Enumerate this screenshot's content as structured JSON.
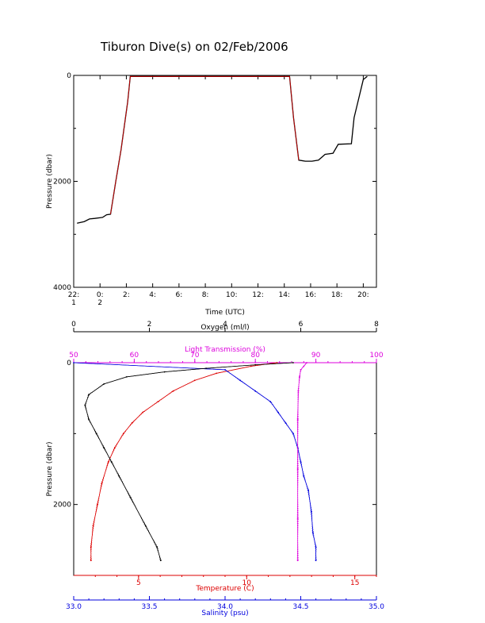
{
  "title": "Tiburon Dive(s) on 02/Feb/2006",
  "colors": {
    "black": "#000000",
    "temperature": "#dd0000",
    "salinity": "#0000dd",
    "transmission": "#dd00dd",
    "oxygen": "#000000"
  },
  "chart_data": [
    {
      "type": "line",
      "name": "pressure-vs-time",
      "xlabel": "Time (UTC)",
      "ylabel": "Pressure (dbar)",
      "x_unit": "hours since 22:00 UTC 01/Feb/2006",
      "xlim": [
        0,
        23
      ],
      "ylim": [
        4000,
        0
      ],
      "y_ticks": [
        0,
        2000,
        4000
      ],
      "y_tick_labels": [
        "0",
        "2000",
        "4000"
      ],
      "x_tick_positions": [
        0,
        2,
        4,
        6,
        8,
        10,
        12,
        14,
        16,
        18,
        20,
        22
      ],
      "x_tick_labels": [
        "22:\n1",
        "0:\n2",
        "2:",
        "4:",
        "6:",
        "8:",
        "10:",
        "12:",
        "14:",
        "16:",
        "18:",
        "20:"
      ],
      "series": [
        {
          "color": "#000000",
          "x": [
            0.25,
            0.8,
            1.2,
            1.6,
            2.2,
            2.5,
            2.8,
            3.2,
            3.6,
            4.1,
            4.3,
            16.4,
            16.7,
            17.1,
            17.6,
            18.1,
            18.6,
            19.1,
            19.7,
            20.1,
            21.1,
            21.3,
            22.0,
            22.3
          ],
          "y": [
            2790,
            2760,
            2710,
            2700,
            2680,
            2630,
            2620,
            2000,
            1400,
            500,
            20,
            20,
            800,
            1600,
            1620,
            1620,
            1600,
            1490,
            1470,
            1300,
            1290,
            800,
            80,
            20
          ]
        },
        {
          "color": "#dd0000",
          "x": [
            2.8,
            3.2,
            3.6,
            4.1,
            4.3,
            16.4,
            16.7,
            17.1
          ],
          "y": [
            2620,
            2000,
            1400,
            500,
            20,
            20,
            800,
            1600
          ]
        }
      ]
    },
    {
      "type": "scatter",
      "name": "profiles",
      "ylabel": "Pressure (dbar)",
      "ylim": [
        3000,
        0
      ],
      "y_ticks": [
        0,
        2000
      ],
      "axes": {
        "oxygen": {
          "label": "Oxygen (ml/l)",
          "range": [
            0,
            8
          ],
          "ticks": [
            0,
            2,
            4,
            6,
            8
          ]
        },
        "transmission": {
          "label": "Light Transmission (%)",
          "range": [
            50,
            100
          ],
          "ticks": [
            50,
            60,
            70,
            80,
            90,
            100
          ]
        },
        "temperature": {
          "label": "Temperature (C)",
          "range": [
            2,
            16
          ],
          "ticks": [
            5,
            10,
            15
          ]
        },
        "salinity": {
          "label": "Salinity (psu)",
          "range": [
            33.0,
            35.0
          ],
          "ticks": [
            "33.0",
            "33.5",
            "34.0",
            "34.5",
            "35.0"
          ]
        }
      },
      "series": [
        {
          "name": "Temperature",
          "axis": "temperature",
          "color": "#dd0000",
          "x": [
            11.4,
            10.2,
            8.6,
            7.6,
            6.6,
            5.9,
            5.2,
            4.7,
            4.3,
            3.9,
            3.6,
            3.3,
            3.1,
            2.9,
            2.8,
            2.8
          ],
          "y": [
            0,
            50,
            150,
            250,
            400,
            550,
            700,
            850,
            1000,
            1200,
            1400,
            1700,
            2000,
            2300,
            2600,
            2790
          ]
        },
        {
          "name": "Salinity",
          "axis": "salinity",
          "color": "#0000dd",
          "x": [
            33.0,
            34.0,
            34.1,
            34.2,
            34.3,
            34.35,
            34.4,
            34.45,
            34.48,
            34.5,
            34.52,
            34.55,
            34.57,
            34.58,
            34.6,
            34.6
          ],
          "y": [
            0,
            100,
            250,
            400,
            550,
            700,
            850,
            1000,
            1200,
            1400,
            1600,
            1800,
            2100,
            2400,
            2600,
            2790
          ]
        },
        {
          "name": "Light Transmission",
          "axis": "transmission",
          "color": "#dd00dd",
          "x": [
            88.5,
            88.0,
            87.5,
            87.3,
            87.1,
            87.0,
            87.0,
            87.0,
            87.0
          ],
          "y": [
            0,
            50,
            100,
            200,
            400,
            800,
            1500,
            2200,
            2790
          ]
        },
        {
          "name": "Oxygen",
          "axis": "oxygen",
          "color": "#000000",
          "x": [
            5.8,
            4.8,
            3.5,
            2.4,
            1.4,
            0.8,
            0.4,
            0.3,
            0.4,
            0.6,
            0.8,
            1.0,
            1.2,
            1.5,
            1.9,
            2.2,
            2.3
          ],
          "y": [
            0,
            30,
            80,
            130,
            200,
            300,
            450,
            600,
            800,
            1000,
            1200,
            1400,
            1600,
            1900,
            2300,
            2600,
            2790
          ]
        }
      ]
    }
  ]
}
